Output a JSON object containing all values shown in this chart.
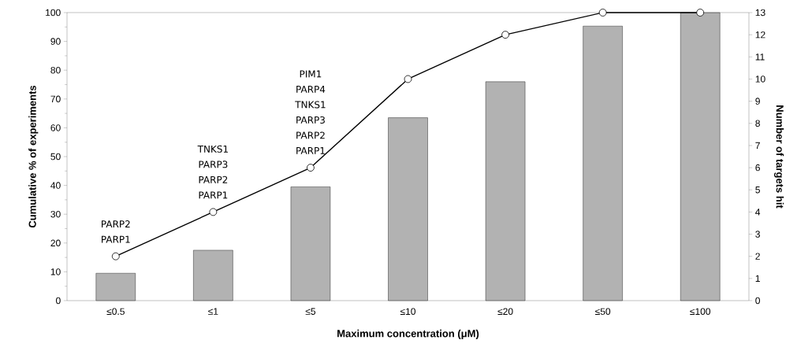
{
  "chart_data": {
    "type": "bar",
    "categories": [
      "≤0.5",
      "≤1",
      "≤5",
      "≤10",
      "≤20",
      "≤50",
      "≤100"
    ],
    "xlabel": "Maximum concentration (μM)",
    "ylabel": "Cumulative % of experiments",
    "y2label": "Number of targets hit",
    "series": [
      {
        "color": "#b2b2b2",
        "values": [
          9.5,
          17.5,
          39.5,
          63.5,
          76,
          95.3,
          100
        ]
      },
      {
        "type": "line",
        "axis": "y2",
        "color": "#000000",
        "marker": "circle",
        "values": [
          2,
          4,
          6,
          10,
          12,
          13,
          13
        ]
      }
    ],
    "ylim": [
      0,
      100
    ],
    "yticks": [
      0,
      10,
      20,
      30,
      40,
      50,
      60,
      70,
      80,
      90,
      100
    ],
    "y2lim": [
      0,
      13
    ],
    "y2ticks": [
      0,
      1,
      2,
      3,
      4,
      5,
      6,
      7,
      8,
      9,
      10,
      11,
      12,
      13
    ],
    "grid": false,
    "annotations": [
      "PARP2 PARP1",
      "TNKS1 PARP3 PARP2 PARP1",
      "PIM1 PARP4 TNKS1 PARP3 PARP2 PARP1"
    ]
  }
}
